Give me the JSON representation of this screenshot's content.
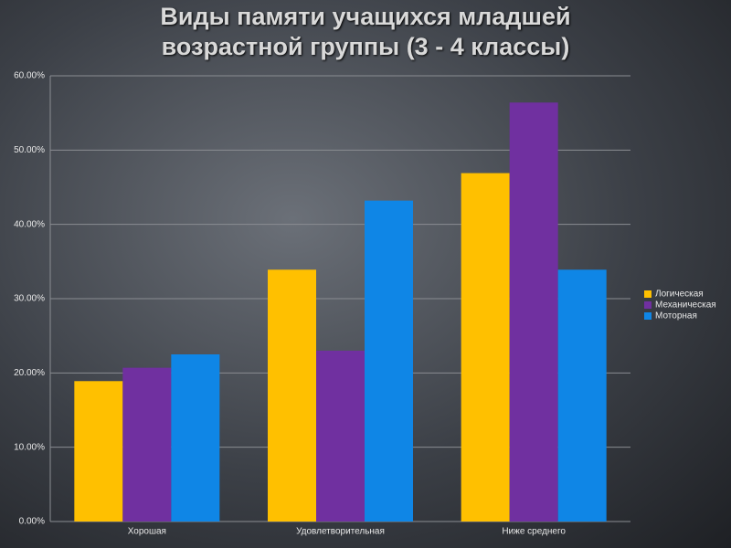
{
  "chart_data": {
    "type": "bar",
    "title": "Виды памяти учащихся младшей возрастной группы (3 - 4 классы)",
    "categories": [
      "Хорошая",
      "Удовлетворительная",
      "Ниже среднего"
    ],
    "series": [
      {
        "name": "Логическая",
        "color": "#ffc000",
        "values": [
          18.9,
          33.9,
          46.9
        ]
      },
      {
        "name": "Механическая",
        "color": "#7030a0",
        "values": [
          20.7,
          23.0,
          56.4
        ]
      },
      {
        "name": "Моторная",
        "color": "#0f86e6",
        "values": [
          22.5,
          43.2,
          33.9
        ]
      }
    ],
    "ylim": [
      0,
      60
    ],
    "yticks": [
      {
        "value": 0,
        "label": "0.00%"
      },
      {
        "value": 10,
        "label": "10.00%"
      },
      {
        "value": 20,
        "label": "20.00%"
      },
      {
        "value": 30,
        "label": "30.00%"
      },
      {
        "value": 40,
        "label": "40.00%"
      },
      {
        "value": 50,
        "label": "50.00%"
      },
      {
        "value": 60,
        "label": "60.00%"
      }
    ],
    "grid": true,
    "legend": "right"
  }
}
